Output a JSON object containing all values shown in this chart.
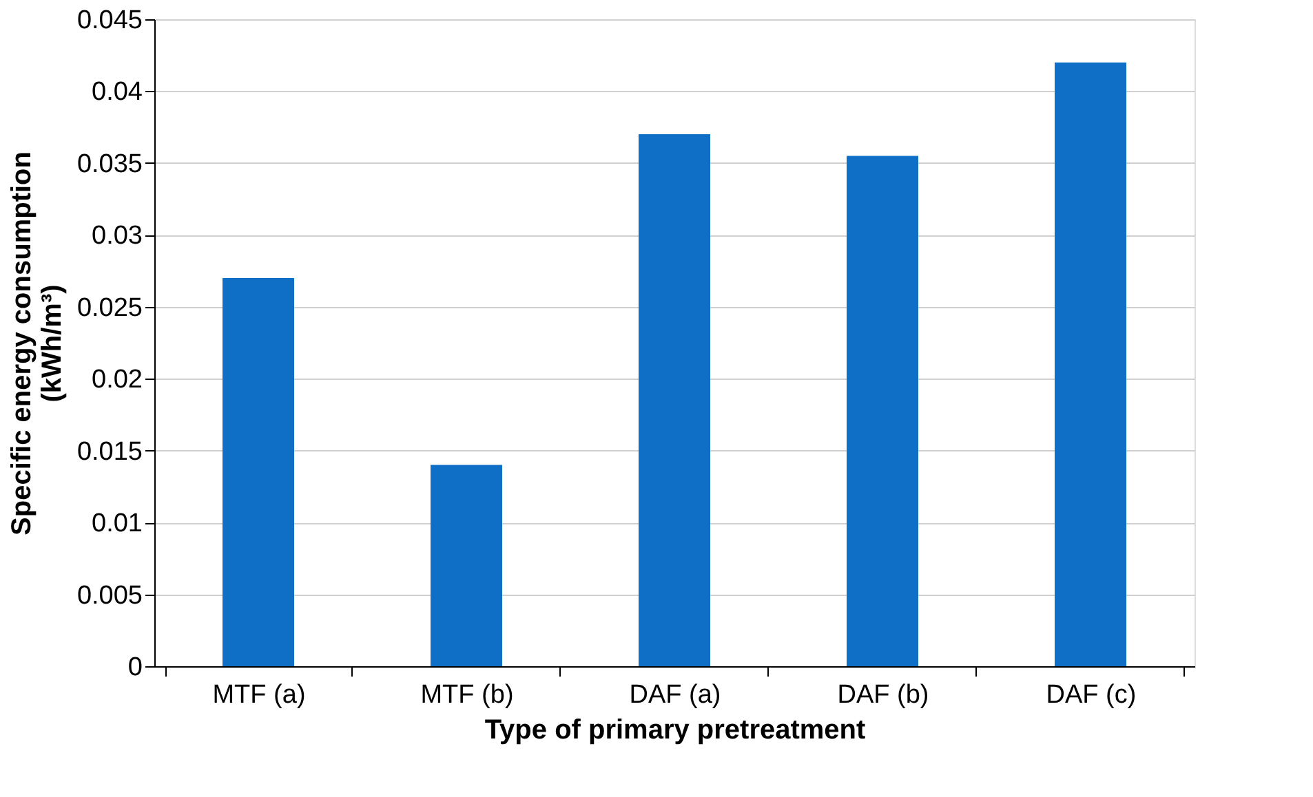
{
  "chart_data": {
    "type": "bar",
    "xlabel": "Type of primary pretreatment",
    "ylabel": "Specific energy consumption (kWh/m³)",
    "categories": [
      "MTF (a)",
      "MTF (b)",
      "DAF (a)",
      "DAF (b)",
      "DAF (c)"
    ],
    "values": [
      0.027,
      0.014,
      0.037,
      0.0355,
      0.042
    ],
    "color": "#0f6fc6",
    "ylim": [
      0,
      0.045
    ],
    "yticks": [
      0,
      0.005,
      0.01,
      0.015,
      0.02,
      0.025,
      0.03,
      0.035,
      0.04,
      0.045
    ],
    "grid": "y"
  }
}
